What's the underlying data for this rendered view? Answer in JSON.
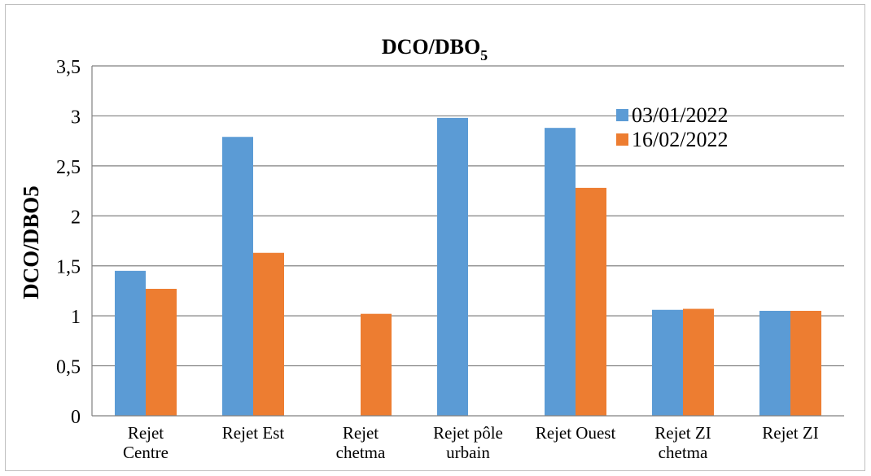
{
  "chart_data": {
    "type": "bar",
    "title": "DCO/DBO",
    "title_subscript": "5",
    "ylabel": "DCO/DBO5",
    "xlabel": "",
    "ylim": [
      0,
      3.5
    ],
    "yticks": [
      "0",
      "0,5",
      "1",
      "1,5",
      "2",
      "2,5",
      "3",
      "3,5"
    ],
    "grid": true,
    "legend_position": "top-right",
    "categories": [
      [
        "Rejet",
        "Centre"
      ],
      [
        "Rejet Est"
      ],
      [
        "Rejet",
        "chetma"
      ],
      [
        "Rejet pôle",
        "urbain"
      ],
      [
        "Rejet Ouest"
      ],
      [
        "Rejet ZI",
        "chetma"
      ],
      [
        "Rejet ZI"
      ]
    ],
    "series": [
      {
        "name": "03/01/2022",
        "color": "#5b9bd5",
        "values": [
          1.45,
          2.79,
          null,
          2.98,
          2.88,
          1.06,
          1.05
        ]
      },
      {
        "name": "16/02/2022",
        "color": "#ed7d31",
        "values": [
          1.27,
          1.63,
          1.02,
          null,
          2.28,
          1.07,
          1.05
        ]
      }
    ]
  }
}
